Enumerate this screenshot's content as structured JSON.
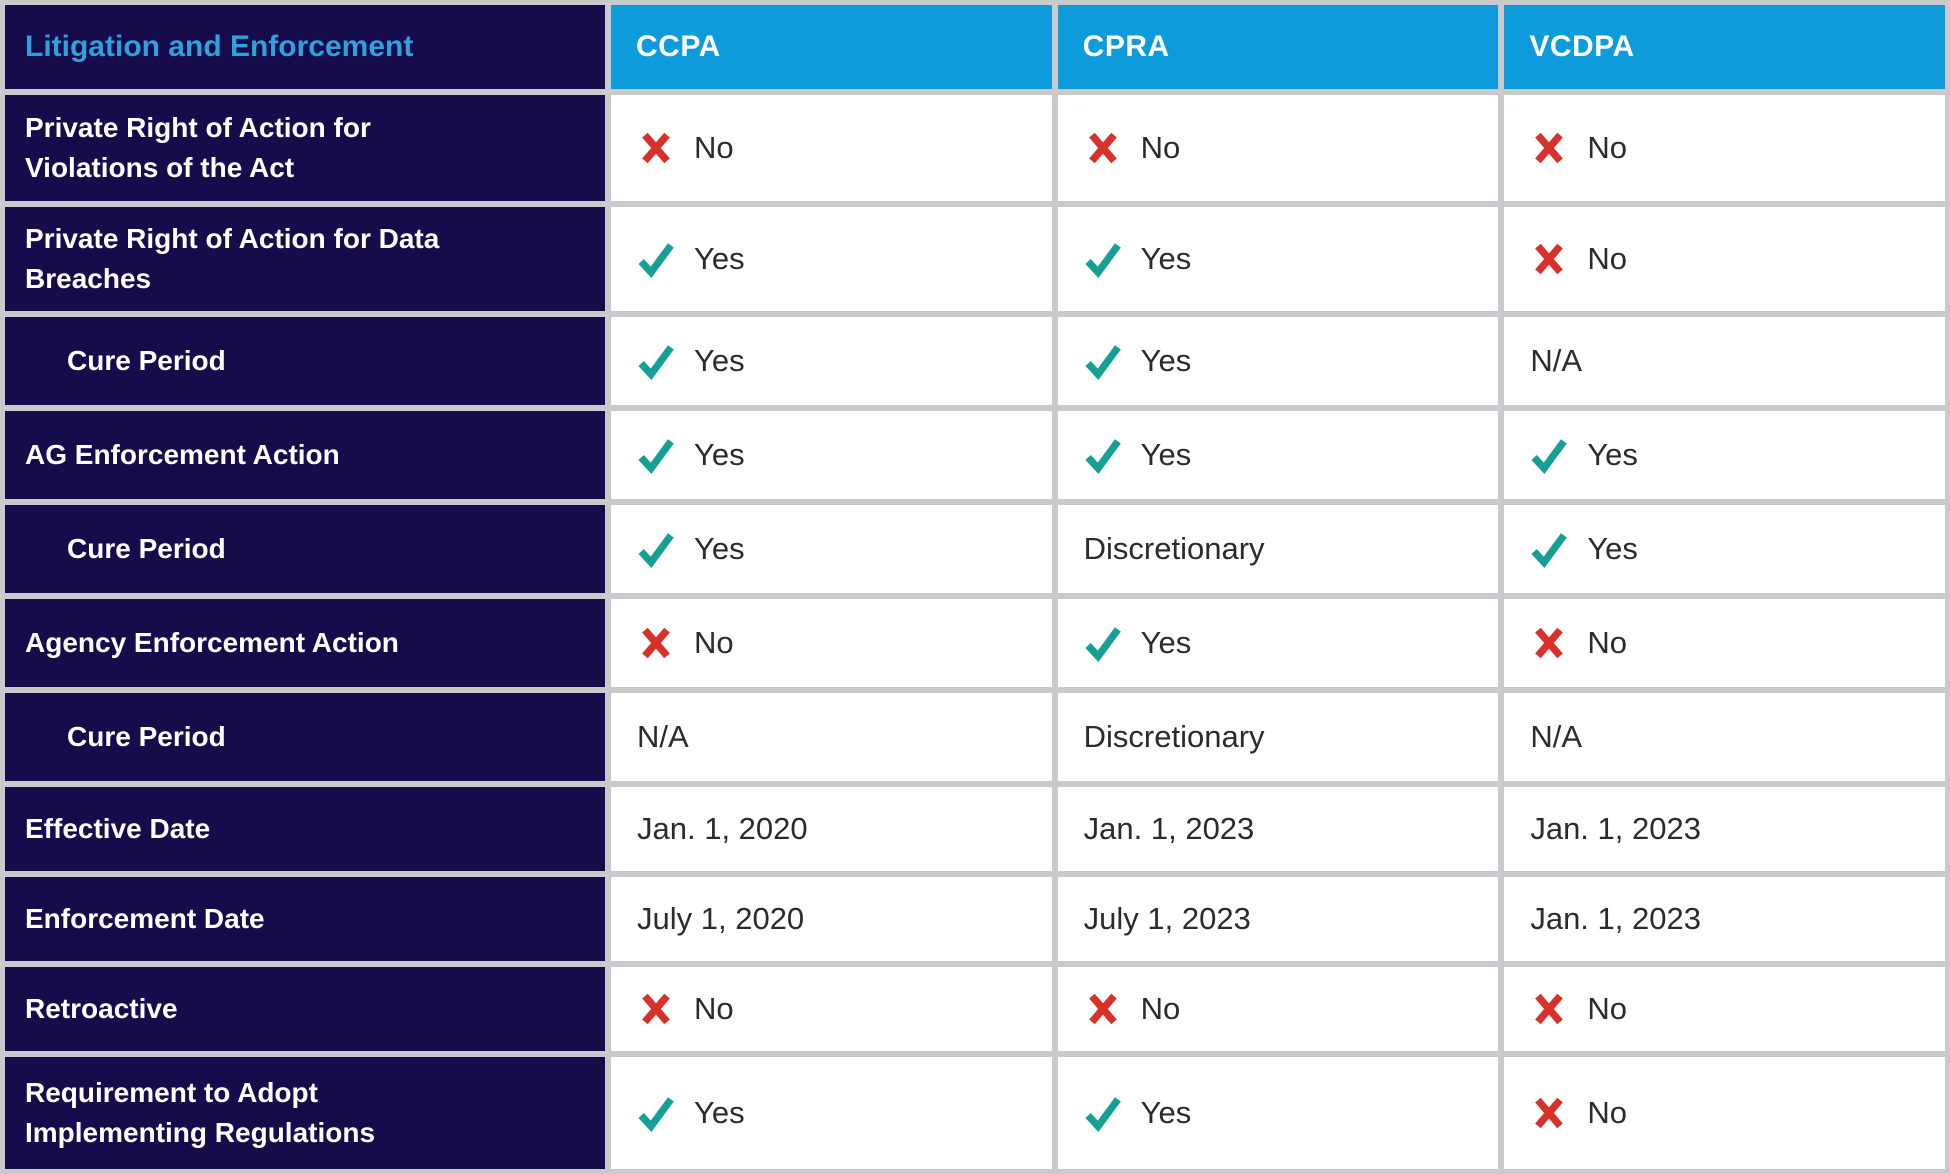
{
  "colors": {
    "navy_bg": "#160C4C",
    "column_header_bg": "#0E9BDB",
    "section_title_text": "#2FA1DC",
    "check_icon": "#16A095",
    "cross_icon": "#D7312A",
    "grid_lines": "#C9C9CE",
    "cell_bg": "#FFFFFF",
    "value_text": "#2B2B2B"
  },
  "table": {
    "section_title": "Litigation and Enforcement",
    "columns": [
      "CCPA",
      "CPRA",
      "VCDPA"
    ],
    "rows": [
      {
        "label": "Private Right of Action for Violations of the Act",
        "indent": false,
        "cells": [
          {
            "icon": "cross",
            "text": "No"
          },
          {
            "icon": "cross",
            "text": "No"
          },
          {
            "icon": "cross",
            "text": "No"
          }
        ]
      },
      {
        "label": "Private Right of Action for Data Breaches",
        "indent": false,
        "cells": [
          {
            "icon": "check",
            "text": "Yes"
          },
          {
            "icon": "check",
            "text": "Yes"
          },
          {
            "icon": "cross",
            "text": "No"
          }
        ]
      },
      {
        "label": "Cure Period",
        "indent": true,
        "cells": [
          {
            "icon": "check",
            "text": "Yes"
          },
          {
            "icon": "check",
            "text": "Yes"
          },
          {
            "icon": "none",
            "text": "N/A"
          }
        ]
      },
      {
        "label": "AG Enforcement Action",
        "indent": false,
        "cells": [
          {
            "icon": "check",
            "text": "Yes"
          },
          {
            "icon": "check",
            "text": "Yes"
          },
          {
            "icon": "check",
            "text": "Yes"
          }
        ]
      },
      {
        "label": "Cure Period",
        "indent": true,
        "cells": [
          {
            "icon": "check",
            "text": "Yes"
          },
          {
            "icon": "none",
            "text": "Discretionary"
          },
          {
            "icon": "check",
            "text": "Yes"
          }
        ]
      },
      {
        "label": "Agency Enforcement Action",
        "indent": false,
        "cells": [
          {
            "icon": "cross",
            "text": "No"
          },
          {
            "icon": "check",
            "text": "Yes"
          },
          {
            "icon": "cross",
            "text": "No"
          }
        ]
      },
      {
        "label": "Cure Period",
        "indent": true,
        "cells": [
          {
            "icon": "none",
            "text": "N/A"
          },
          {
            "icon": "none",
            "text": "Discretionary"
          },
          {
            "icon": "none",
            "text": "N/A"
          }
        ]
      },
      {
        "label": "Effective Date",
        "indent": false,
        "cells": [
          {
            "icon": "none",
            "text": "Jan. 1, 2020"
          },
          {
            "icon": "none",
            "text": "Jan. 1, 2023"
          },
          {
            "icon": "none",
            "text": "Jan. 1, 2023"
          }
        ]
      },
      {
        "label": "Enforcement Date",
        "indent": false,
        "cells": [
          {
            "icon": "none",
            "text": "July 1, 2020"
          },
          {
            "icon": "none",
            "text": "July 1, 2023"
          },
          {
            "icon": "none",
            "text": "Jan. 1, 2023"
          }
        ]
      },
      {
        "label": "Retroactive",
        "indent": false,
        "cells": [
          {
            "icon": "cross",
            "text": "No"
          },
          {
            "icon": "cross",
            "text": "No"
          },
          {
            "icon": "cross",
            "text": "No"
          }
        ]
      },
      {
        "label": "Requirement to Adopt Implementing Regulations",
        "indent": false,
        "cells": [
          {
            "icon": "check",
            "text": "Yes"
          },
          {
            "icon": "check",
            "text": "Yes"
          },
          {
            "icon": "cross",
            "text": "No"
          }
        ]
      }
    ]
  }
}
